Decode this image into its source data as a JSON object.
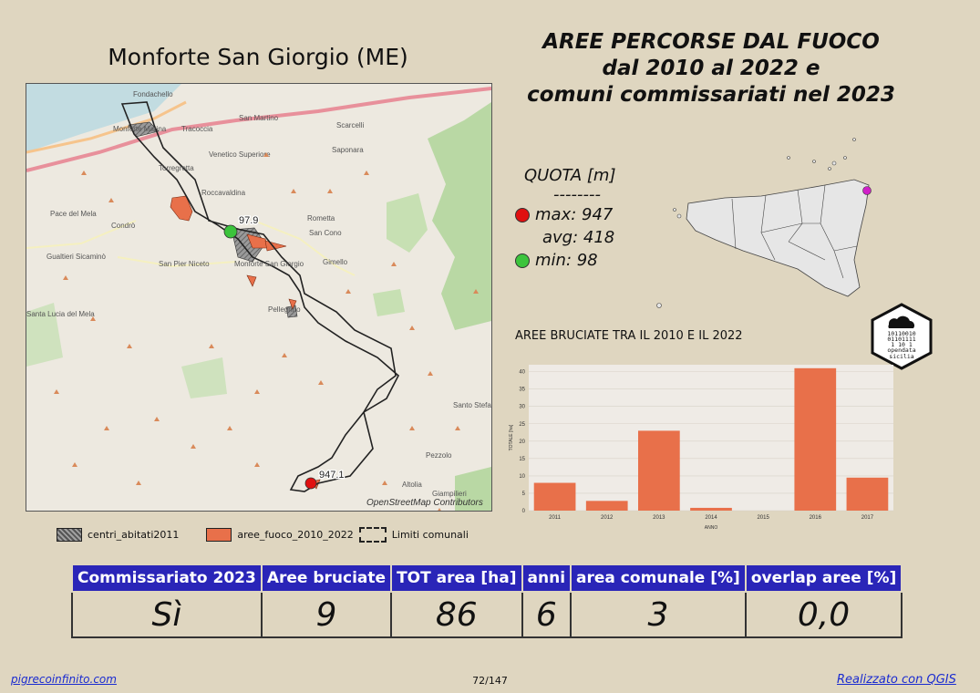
{
  "comune_title": "Monforte San Giorgio (ME)",
  "main_title": [
    "AREE PERCORSE DAL FUOCO",
    "dal 2010 al 2022 e",
    "comuni commissariati nel 2023"
  ],
  "map": {
    "place_labels": [
      "Fondachello",
      "Monforte Marina",
      "San Martino",
      "Scarcelli",
      "Tracoccia",
      "Venetico Superiore",
      "Saponara",
      "Torregrotta",
      "Roccavaldina",
      "Pace del Mela",
      "Condrò",
      "Rometta",
      "San Cono",
      "Gualtieri Sicaminò",
      "San Pier Niceto",
      "Monforte San Giorgio",
      "Gimello",
      "Santa Lucia del Mela",
      "Pellegrino",
      "Santo Stefano di Briga",
      "Pezzolo",
      "Altolia",
      "Giampilieri"
    ],
    "min_label": "97.9",
    "max_label": "947.1",
    "attribution": "OpenStreetMap Contributors",
    "colors": {
      "fire": "#e8704a",
      "urban": "#888888",
      "boundary": "#222222"
    }
  },
  "legend": [
    {
      "label": "centri_abitati2011",
      "icon": "hatched-gray-swatch"
    },
    {
      "label": "aree_fuoco_2010_2022",
      "icon": "orange-swatch"
    },
    {
      "label": "Limiti comunali",
      "icon": "dashed-boundary-swatch"
    }
  ],
  "quota": {
    "title": "QUOTA [m]",
    "separator": "--------",
    "max": "max: 947",
    "avg": "avg: 418",
    "min": "min: 98",
    "max_color": "#e01010",
    "min_color": "#3cc43c"
  },
  "sicily_marker_color": "#d020c8",
  "logo_text": [
    "10110010",
    "01101111",
    "1 10 1",
    "opendata",
    "sicilia"
  ],
  "chart_title": "AREE BRUCIATE TRA IL 2010 E IL 2022",
  "chart_data": {
    "type": "bar",
    "categories": [
      "2011",
      "2012",
      "2013",
      "2014",
      "2015",
      "2016",
      "2017"
    ],
    "values": [
      8,
      2.8,
      23,
      0.8,
      0,
      41,
      9.5
    ],
    "xlabel": "ANNO",
    "ylabel": "TOTALE [ha]",
    "ylim": [
      0,
      42
    ],
    "yticks": [
      0,
      5,
      10,
      15,
      20,
      25,
      30,
      35,
      40
    ],
    "color": "#e8704a",
    "grid": true
  },
  "table": {
    "headers": [
      "Commissariato 2023",
      "Aree bruciate",
      "TOT area [ha]",
      "anni",
      "area comunale [%]",
      "overlap aree [%]"
    ],
    "values": [
      "Sì",
      "9",
      "86",
      "6",
      "3",
      "0,0"
    ]
  },
  "footer": {
    "left": "pigrecoinfinito.com",
    "page": "72/147",
    "right": "Realizzato con QGIS"
  }
}
